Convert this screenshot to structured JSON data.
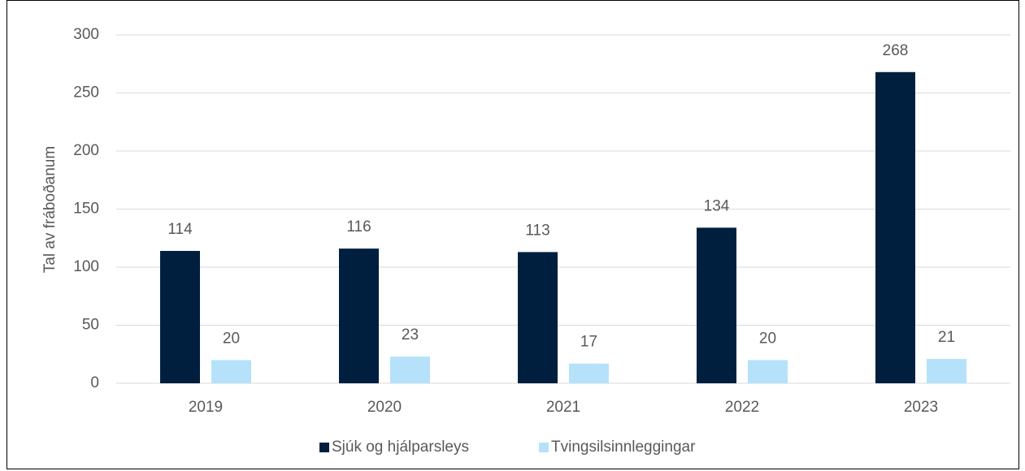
{
  "chart_data": {
    "type": "bar",
    "y_label": "Tal av fráboðanum",
    "categories": [
      "2019",
      "2020",
      "2021",
      "2022",
      "2023"
    ],
    "series": [
      {
        "name": "Sjúk og hjálparsleys",
        "color": "#001f3f",
        "values": [
          114,
          116,
          113,
          134,
          268
        ]
      },
      {
        "name": "Tvingsilsinnleggingar",
        "color": "#b5e2fa",
        "values": [
          20,
          23,
          17,
          20,
          21
        ]
      }
    ],
    "ylim": [
      0,
      300
    ],
    "yticks": [
      0,
      50,
      100,
      150,
      200,
      250,
      300
    ],
    "grid": true,
    "legend": "bottom"
  }
}
